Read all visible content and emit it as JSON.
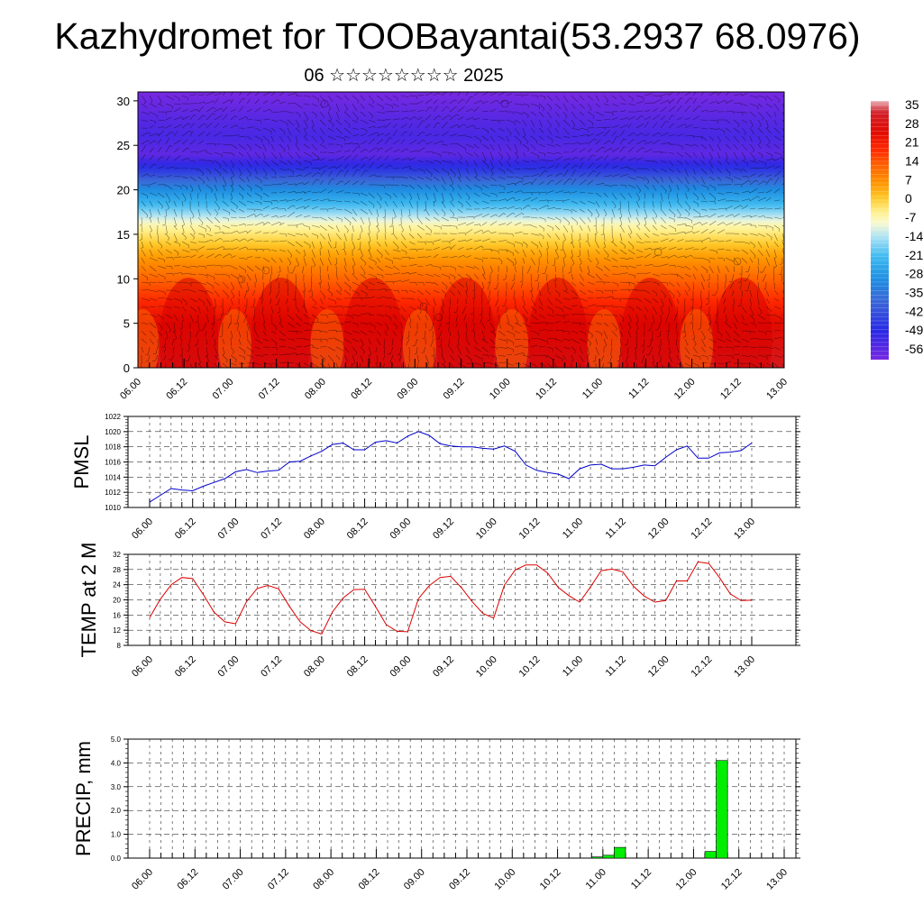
{
  "header": {
    "title": "Kazhydromet for TOOBayantai(53.2937 68.0976)",
    "subtitle": "06 ☆☆☆☆☆☆☆☆ 2025"
  },
  "chart_data": [
    {
      "type": "heatmap",
      "title": "",
      "xlabel": "",
      "ylabel": "",
      "x_tick_labels": [
        "06.00",
        "06.12",
        "07.00",
        "07.12",
        "08.00",
        "08.12",
        "09.00",
        "09.12",
        "10.00",
        "10.12",
        "11.00",
        "11.12",
        "12.00",
        "12.12",
        "13.00"
      ],
      "y_ticks": [
        0,
        5,
        10,
        15,
        20,
        25,
        30
      ],
      "ylim": [
        0,
        31
      ],
      "colorbar_labels": [
        "35",
        "28",
        "21",
        "14",
        "7",
        "0",
        "-7",
        "-14",
        "-21",
        "-28",
        "-35",
        "-42",
        "-49",
        "-56"
      ],
      "colorbar_colors": [
        "#e8b4bc",
        "#cc0000",
        "#ee1100",
        "#ff3300",
        "#ff6a00",
        "#ffa000",
        "#ffd040",
        "#fff8a0",
        "#a8e0f0",
        "#40b8f0",
        "#2090e0",
        "#4060d8",
        "#3030e8",
        "#8030e0"
      ],
      "profile": {
        "levels": [
          0,
          5,
          10,
          13,
          16,
          18,
          20,
          22,
          24,
          26,
          28,
          31
        ],
        "values": [
          29,
          24,
          12,
          4,
          -6,
          -18,
          -28,
          -42,
          -53,
          -50,
          -52,
          -56
        ]
      },
      "wind_barbs": true
    },
    {
      "type": "line",
      "ylabel": "PMSL",
      "color": "#0000cc",
      "ylim": [
        1010,
        1022
      ],
      "y_ticks": [
        1010,
        1012,
        1014,
        1016,
        1018,
        1020,
        1022
      ],
      "x_tick_labels": [
        "06.00",
        "06.12",
        "07.00",
        "07.12",
        "08.00",
        "08.12",
        "09.00",
        "09.12",
        "10.00",
        "10.12",
        "11.00",
        "11.12",
        "12.00",
        "12.12",
        "13.00"
      ],
      "x_hours": [
        0,
        3,
        6,
        9,
        12,
        15,
        18,
        21,
        24,
        27,
        30,
        33,
        36,
        39,
        42,
        45,
        48,
        51,
        54,
        57,
        60,
        63,
        66,
        69,
        72,
        75,
        78,
        81,
        84,
        87,
        90,
        93,
        96,
        99,
        102,
        105,
        108,
        111,
        114,
        117,
        120,
        123,
        126,
        129,
        132,
        135,
        138,
        141,
        144,
        147,
        150,
        153,
        156,
        159,
        162,
        165,
        168
      ],
      "values": [
        1010.7,
        1011.6,
        1012.5,
        1012.3,
        1012.2,
        1012.8,
        1013.3,
        1013.8,
        1014.7,
        1015.0,
        1014.6,
        1014.8,
        1014.9,
        1016.0,
        1016.1,
        1016.8,
        1017.4,
        1018.3,
        1018.5,
        1017.6,
        1017.6,
        1018.6,
        1018.8,
        1018.5,
        1019.4,
        1020.0,
        1019.5,
        1018.4,
        1018.1,
        1018.0,
        1018.0,
        1017.8,
        1017.7,
        1018.1,
        1017.4,
        1015.6,
        1014.9,
        1014.6,
        1014.4,
        1013.8,
        1015.1,
        1015.6,
        1015.7,
        1015.1,
        1015.1,
        1015.3,
        1015.6,
        1015.5,
        1016.6,
        1017.6,
        1018.1,
        1016.5,
        1016.5,
        1017.2,
        1017.3,
        1017.5,
        1018.5
      ]
    },
    {
      "type": "line",
      "ylabel": "TEMP at 2 M",
      "color": "#dd0000",
      "ylim": [
        8,
        32
      ],
      "y_ticks": [
        8,
        12,
        16,
        20,
        24,
        28,
        32
      ],
      "x_tick_labels": [
        "06.00",
        "06.12",
        "07.00",
        "07.12",
        "08.00",
        "08.12",
        "09.00",
        "09.12",
        "10.00",
        "10.12",
        "11.00",
        "11.12",
        "12.00",
        "12.12",
        "13.00"
      ],
      "x_hours": [
        0,
        3,
        6,
        9,
        12,
        15,
        18,
        21,
        24,
        27,
        30,
        33,
        36,
        39,
        42,
        45,
        48,
        51,
        54,
        57,
        60,
        63,
        66,
        69,
        72,
        75,
        78,
        81,
        84,
        87,
        90,
        93,
        96,
        99,
        102,
        105,
        108,
        111,
        114,
        117,
        120,
        123,
        126,
        129,
        132,
        135,
        138,
        141,
        144,
        147,
        150,
        153,
        156,
        159,
        162,
        165,
        168
      ],
      "values": [
        15.3,
        20.2,
        24.0,
        25.9,
        25.6,
        21.4,
        16.7,
        14.2,
        13.7,
        19.5,
        23.0,
        23.8,
        22.9,
        18.3,
        14.2,
        11.9,
        11.0,
        16.8,
        20.5,
        22.7,
        22.8,
        18.3,
        13.5,
        11.7,
        11.6,
        20.3,
        23.7,
        25.9,
        26.2,
        23.2,
        19.5,
        16.4,
        15.2,
        23.9,
        27.9,
        29.2,
        29.2,
        27.1,
        23.3,
        21.1,
        19.4,
        23.4,
        27.7,
        28.1,
        27.4,
        23.6,
        21.0,
        19.4,
        19.8,
        25.0,
        25.0,
        30.0,
        29.6,
        25.9,
        21.6,
        19.8,
        19.9
      ]
    },
    {
      "type": "bar",
      "ylabel": "PRECIP, mm",
      "color": "#00ee00",
      "ylim": [
        0,
        5
      ],
      "y_tick_labels": [
        "0.0",
        "1.0",
        "2.0",
        "3.0",
        "4.0",
        "5.0"
      ],
      "x_tick_labels": [
        "06.00",
        "06.12",
        "07.00",
        "07.12",
        "08.00",
        "08.12",
        "09.00",
        "09.12",
        "10.00",
        "10.12",
        "11.00",
        "11.12",
        "12.00",
        "12.12",
        "13.00"
      ],
      "bars": [
        {
          "start_hour": 117,
          "end_hour": 120,
          "value": 0.05
        },
        {
          "start_hour": 120,
          "end_hour": 123,
          "value": 0.12
        },
        {
          "start_hour": 123,
          "end_hour": 126,
          "value": 0.45
        },
        {
          "start_hour": 147,
          "end_hour": 150,
          "value": 0.28
        },
        {
          "start_hour": 150,
          "end_hour": 153,
          "value": 4.1
        }
      ]
    }
  ]
}
